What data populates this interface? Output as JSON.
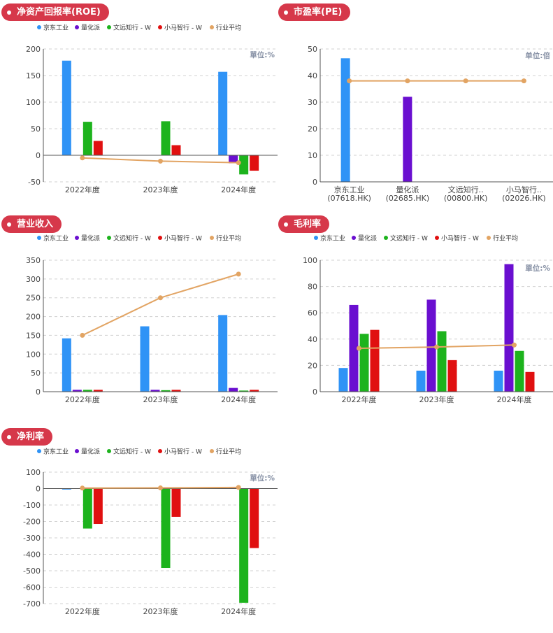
{
  "colors": {
    "jd": "#2f93f6",
    "lhp": "#6a0fd0",
    "wy": "#1db31d",
    "xm": "#e01010",
    "avg": "#e2a463",
    "badge": "#d6384a",
    "axis": "#555555",
    "grid": "#d0d0d0",
    "tick": "#444444",
    "unit": "#8892a6"
  },
  "legend": [
    "京东工业",
    "量化派",
    "文远知行 - W",
    "小马智行 - W",
    "行业平均"
  ],
  "categories": [
    "2022年度",
    "2023年度",
    "2024年度"
  ],
  "charts": [
    {
      "id": "roe",
      "title": "净资产回报率(ROE)",
      "unit": "單位:%",
      "show_legend": true,
      "chart_data": {
        "type": "bar",
        "title": "净资产回报率(ROE)",
        "categories": [
          "2022年度",
          "2023年度",
          "2024年度"
        ],
        "series": [
          {
            "name": "京东工业",
            "values": [
              178,
              0.5,
              157
            ]
          },
          {
            "name": "量化派",
            "values": [
              0,
              0,
              -15
            ]
          },
          {
            "name": "文远知行 - W",
            "values": [
              63,
              64,
              -36
            ]
          },
          {
            "name": "小马智行 - W",
            "values": [
              27,
              19,
              -29
            ]
          }
        ],
        "line": {
          "name": "行业平均",
          "values": [
            -5,
            -11,
            -14
          ]
        },
        "yticks": [
          200,
          150,
          100,
          50,
          0,
          -50
        ],
        "ylim": [
          -50,
          200
        ]
      }
    },
    {
      "id": "pe",
      "title": "市盈率(PE)",
      "unit": "单位:倍",
      "show_legend": false,
      "chart_data": {
        "type": "bar",
        "title": "市盈率(PE)",
        "categories": [
          "京东工业\n(07618.HK)",
          "量化派\n(02685.HK)",
          "文远知行..\n(00800.HK)",
          "小马智行..\n(02026.HK)"
        ],
        "values": [
          46.5,
          32,
          0,
          0
        ],
        "line": {
          "name": "行业平均",
          "values": [
            38,
            38,
            38,
            38
          ]
        },
        "yticks": [
          50,
          40,
          30,
          20,
          10,
          0
        ],
        "ylim": [
          0,
          50
        ]
      }
    },
    {
      "id": "revenue",
      "title": "营业收入",
      "unit": "",
      "show_legend": true,
      "chart_data": {
        "type": "bar",
        "title": "营业收入",
        "categories": [
          "2022年度",
          "2023年度",
          "2024年度"
        ],
        "series": [
          {
            "name": "京东工业",
            "values": [
              142,
              174,
              204
            ]
          },
          {
            "name": "量化派",
            "values": [
              5,
              5,
              10
            ]
          },
          {
            "name": "文远知行 - W",
            "values": [
              5,
              4,
              3
            ]
          },
          {
            "name": "小马智行 - W",
            "values": [
              5,
              5,
              5
            ]
          }
        ],
        "line": {
          "name": "行业平均",
          "values": [
            150,
            250,
            313
          ]
        },
        "yticks": [
          350,
          300,
          250,
          200,
          150,
          100,
          50,
          0
        ],
        "ylim": [
          0,
          350
        ]
      }
    },
    {
      "id": "gross",
      "title": "毛利率",
      "unit": "單位:%",
      "show_legend": true,
      "chart_data": {
        "type": "bar",
        "title": "毛利率",
        "categories": [
          "2022年度",
          "2023年度",
          "2024年度"
        ],
        "series": [
          {
            "name": "京东工业",
            "values": [
              18,
              16,
              16
            ]
          },
          {
            "name": "量化派",
            "values": [
              66,
              70,
              97
            ]
          },
          {
            "name": "文远知行 - W",
            "values": [
              44,
              46,
              31
            ]
          },
          {
            "name": "小马智行 - W",
            "values": [
              47,
              24,
              15
            ]
          }
        ],
        "line": {
          "name": "行业平均",
          "values": [
            33,
            34,
            35.5
          ]
        },
        "yticks": [
          100,
          80,
          60,
          40,
          20,
          0
        ],
        "ylim": [
          0,
          100
        ]
      }
    },
    {
      "id": "net",
      "title": "净利率",
      "unit": "單位:%",
      "show_legend": true,
      "chart_data": {
        "type": "bar",
        "title": "净利率",
        "categories": [
          "2022年度",
          "2023年度",
          "2024年度"
        ],
        "series": [
          {
            "name": "京东工业",
            "values": [
              -6,
              0.5,
              2
            ]
          },
          {
            "name": "量化派",
            "values": [
              0,
              0,
              5
            ]
          },
          {
            "name": "文远知行 - W",
            "values": [
              -243,
              -483,
              -695
            ]
          },
          {
            "name": "小马智行 - W",
            "values": [
              -215,
              -172,
              -362
            ]
          }
        ],
        "line": {
          "name": "行业平均",
          "values": [
            3,
            4,
            7
          ]
        },
        "yticks": [
          100,
          0,
          -100,
          -200,
          -300,
          -400,
          -500,
          -600,
          -700
        ],
        "ylim": [
          -700,
          100
        ]
      }
    }
  ]
}
